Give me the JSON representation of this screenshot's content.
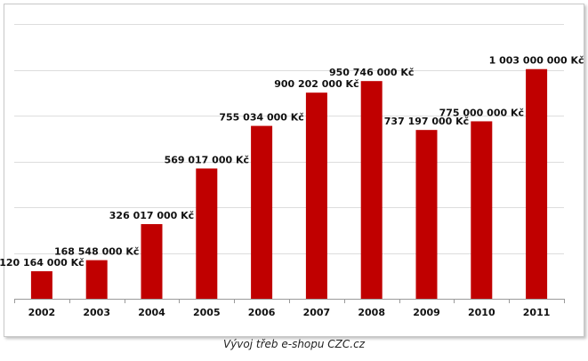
{
  "caption": "Vývoj třeb e-shopu CZC.cz",
  "chart_data": {
    "type": "bar",
    "title": "",
    "xlabel": "",
    "ylabel": "",
    "categories": [
      "2002",
      "2003",
      "2004",
      "2005",
      "2006",
      "2007",
      "2008",
      "2009",
      "2010",
      "2011"
    ],
    "values": [
      120164000,
      168548000,
      326017000,
      569017000,
      755034000,
      900202000,
      950746000,
      737197000,
      775000000,
      1003000000
    ],
    "data_labels": [
      "120 164 000 Kč",
      "168 548 000 Kč",
      "326 017 000 Kč",
      "569 017 000 Kč",
      "755 034 000 Kč",
      "900 202 000 Kč",
      "950 746 000 Kč",
      "737 197 000 Kč",
      "775 000 000 Kč",
      "1 003 000 000 Kč"
    ],
    "ylim": [
      0,
      1200000000
    ],
    "y_gridline_step": 200000000,
    "grid": true,
    "legend": "none",
    "bar_color": "#c00000",
    "grid_color": "#dddddd"
  }
}
